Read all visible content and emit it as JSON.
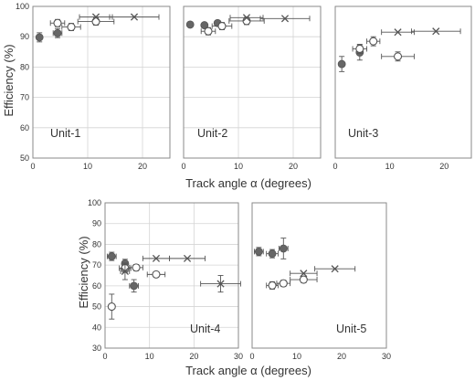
{
  "figure": {
    "ylabel": "Efficiency (%)",
    "xlabel": "Track angle α  (degrees)"
  },
  "chart_data": [
    {
      "type": "scatter",
      "title": "Unit-1",
      "xlabel": "",
      "ylabel": "Efficiency (%)",
      "xlim": [
        0,
        25
      ],
      "ylim": [
        50,
        100
      ],
      "xticks": [
        0,
        10,
        20
      ],
      "yticks": [
        50,
        60,
        70,
        80,
        90,
        100
      ],
      "grid": true,
      "series": [
        {
          "marker": "filled-circle",
          "points": [
            {
              "x": 1.2,
              "y": 89.8,
              "xerr": 0,
              "yerr": 1.5
            },
            {
              "x": 4.5,
              "y": 91.2,
              "xerr": 0.8,
              "yerr": 1.5
            }
          ]
        },
        {
          "marker": "open-circle",
          "points": [
            {
              "x": 4.5,
              "y": 94.5,
              "xerr": 1.3,
              "yerr": 1.2
            },
            {
              "x": 7.0,
              "y": 93.2,
              "xerr": 1.7,
              "yerr": 1.2
            },
            {
              "x": 11.5,
              "y": 95.0,
              "xerr": 3.3,
              "yerr": 1.2
            }
          ]
        },
        {
          "marker": "x",
          "points": [
            {
              "x": 11.5,
              "y": 96.5,
              "xerr": 3.0,
              "yerr": 0
            },
            {
              "x": 18.5,
              "y": 96.5,
              "xerr": 4.5,
              "yerr": 0
            }
          ]
        }
      ]
    },
    {
      "type": "scatter",
      "title": "Unit-2",
      "xlabel": "Track angle α  (degrees)",
      "ylabel": "",
      "xlim": [
        0,
        25
      ],
      "ylim": [
        50,
        100
      ],
      "xticks": [
        0,
        10,
        20
      ],
      "yticks": [],
      "grid": true,
      "series": [
        {
          "marker": "filled-circle",
          "points": [
            {
              "x": 1.2,
              "y": 94.0,
              "xerr": 0,
              "yerr": 0.8
            },
            {
              "x": 3.8,
              "y": 93.8,
              "xerr": 0,
              "yerr": 0.8
            },
            {
              "x": 6.2,
              "y": 94.5,
              "xerr": 0,
              "yerr": 0.8
            }
          ]
        },
        {
          "marker": "open-circle",
          "points": [
            {
              "x": 4.5,
              "y": 91.8,
              "xerr": 1.3,
              "yerr": 1.2
            },
            {
              "x": 7.0,
              "y": 93.5,
              "xerr": 1.8,
              "yerr": 1.2
            },
            {
              "x": 11.5,
              "y": 95.2,
              "xerr": 3.2,
              "yerr": 1.2
            }
          ]
        },
        {
          "marker": "x",
          "points": [
            {
              "x": 11.5,
              "y": 96.3,
              "xerr": 3.0,
              "yerr": 0
            },
            {
              "x": 18.5,
              "y": 96.0,
              "xerr": 4.5,
              "yerr": 0
            }
          ]
        }
      ]
    },
    {
      "type": "scatter",
      "title": "Unit-3",
      "xlabel": "",
      "ylabel": "",
      "xlim": [
        0,
        25
      ],
      "ylim": [
        50,
        100
      ],
      "xticks": [
        0,
        10,
        20
      ],
      "yticks": [],
      "grid": false,
      "series": [
        {
          "marker": "filled-circle",
          "points": [
            {
              "x": 1.2,
              "y": 81.0,
              "xerr": 0,
              "yerr": 2.5
            },
            {
              "x": 4.5,
              "y": 84.8,
              "xerr": 0,
              "yerr": 2.5
            }
          ]
        },
        {
          "marker": "open-circle",
          "points": [
            {
              "x": 4.5,
              "y": 86.0,
              "xerr": 1.3,
              "yerr": 1.5
            },
            {
              "x": 7.0,
              "y": 88.5,
              "xerr": 1.2,
              "yerr": 1.5
            },
            {
              "x": 11.5,
              "y": 83.5,
              "xerr": 3.0,
              "yerr": 1.5
            }
          ]
        },
        {
          "marker": "x",
          "points": [
            {
              "x": 11.5,
              "y": 91.5,
              "xerr": 3.0,
              "yerr": 0
            },
            {
              "x": 18.5,
              "y": 91.8,
              "xerr": 4.5,
              "yerr": 0
            }
          ]
        }
      ]
    },
    {
      "type": "scatter",
      "title": "Unit-4",
      "xlabel": "",
      "ylabel": "Efficiency (%)",
      "xlim": [
        0,
        30
      ],
      "ylim": [
        30,
        100
      ],
      "xticks": [
        0,
        10,
        20,
        30
      ],
      "yticks": [
        30,
        40,
        50,
        60,
        70,
        80,
        90,
        100
      ],
      "grid": true,
      "series": [
        {
          "marker": "filled-circle",
          "points": [
            {
              "x": 1.5,
              "y": 74.2,
              "xerr": 1.0,
              "yerr": 2.0
            },
            {
              "x": 4.5,
              "y": 70.8,
              "xerr": 0,
              "yerr": 2.0
            },
            {
              "x": 6.5,
              "y": 60.0,
              "xerr": 1.0,
              "yerr": 3.0
            }
          ]
        },
        {
          "marker": "open-circle",
          "points": [
            {
              "x": 1.5,
              "y": 50.0,
              "xerr": 0,
              "yerr": 6.0
            },
            {
              "x": 4.5,
              "y": 68.5,
              "xerr": 1.3,
              "yerr": 2.0
            },
            {
              "x": 7.0,
              "y": 68.8,
              "xerr": 1.5,
              "yerr": 1.5
            },
            {
              "x": 11.5,
              "y": 65.5,
              "xerr": 2.0,
              "yerr": 1.0
            }
          ]
        },
        {
          "marker": "x",
          "points": [
            {
              "x": 4.5,
              "y": 67.0,
              "xerr": 1.0,
              "yerr": 4.0
            },
            {
              "x": 11.5,
              "y": 73.2,
              "xerr": 3.0,
              "yerr": 0
            },
            {
              "x": 18.5,
              "y": 73.2,
              "xerr": 4.0,
              "yerr": 0
            },
            {
              "x": 26.0,
              "y": 61.0,
              "xerr": 4.5,
              "yerr": 4.0
            }
          ]
        }
      ]
    },
    {
      "type": "scatter",
      "title": "Unit-5",
      "xlabel": "",
      "ylabel": "",
      "xlim": [
        0,
        30
      ],
      "ylim": [
        30,
        100
      ],
      "xticks": [
        0,
        10,
        20,
        30
      ],
      "yticks": [],
      "grid": false,
      "series": [
        {
          "marker": "filled-circle",
          "points": [
            {
              "x": 1.5,
              "y": 76.5,
              "xerr": 1.0,
              "yerr": 2.0
            },
            {
              "x": 4.5,
              "y": 75.5,
              "xerr": 1.3,
              "yerr": 2.0
            },
            {
              "x": 7.0,
              "y": 78.0,
              "xerr": 1.0,
              "yerr": 5.0
            }
          ]
        },
        {
          "marker": "open-circle",
          "points": [
            {
              "x": 4.5,
              "y": 60.2,
              "xerr": 1.3,
              "yerr": 1.8
            },
            {
              "x": 7.0,
              "y": 61.2,
              "xerr": 1.5,
              "yerr": 1.5
            },
            {
              "x": 11.5,
              "y": 63.0,
              "xerr": 3.0,
              "yerr": 1.5
            }
          ]
        },
        {
          "marker": "x",
          "points": [
            {
              "x": 11.5,
              "y": 66.0,
              "xerr": 3.0,
              "yerr": 0
            },
            {
              "x": 18.5,
              "y": 68.2,
              "xerr": 4.5,
              "yerr": 0
            }
          ]
        }
      ]
    }
  ],
  "colors": {
    "frame": "#8a8a8a",
    "grid": "#d4d4d4",
    "filled_marker": "#666666",
    "marker_stroke": "#555555",
    "errorbar": "#555555",
    "text": "#333333"
  }
}
